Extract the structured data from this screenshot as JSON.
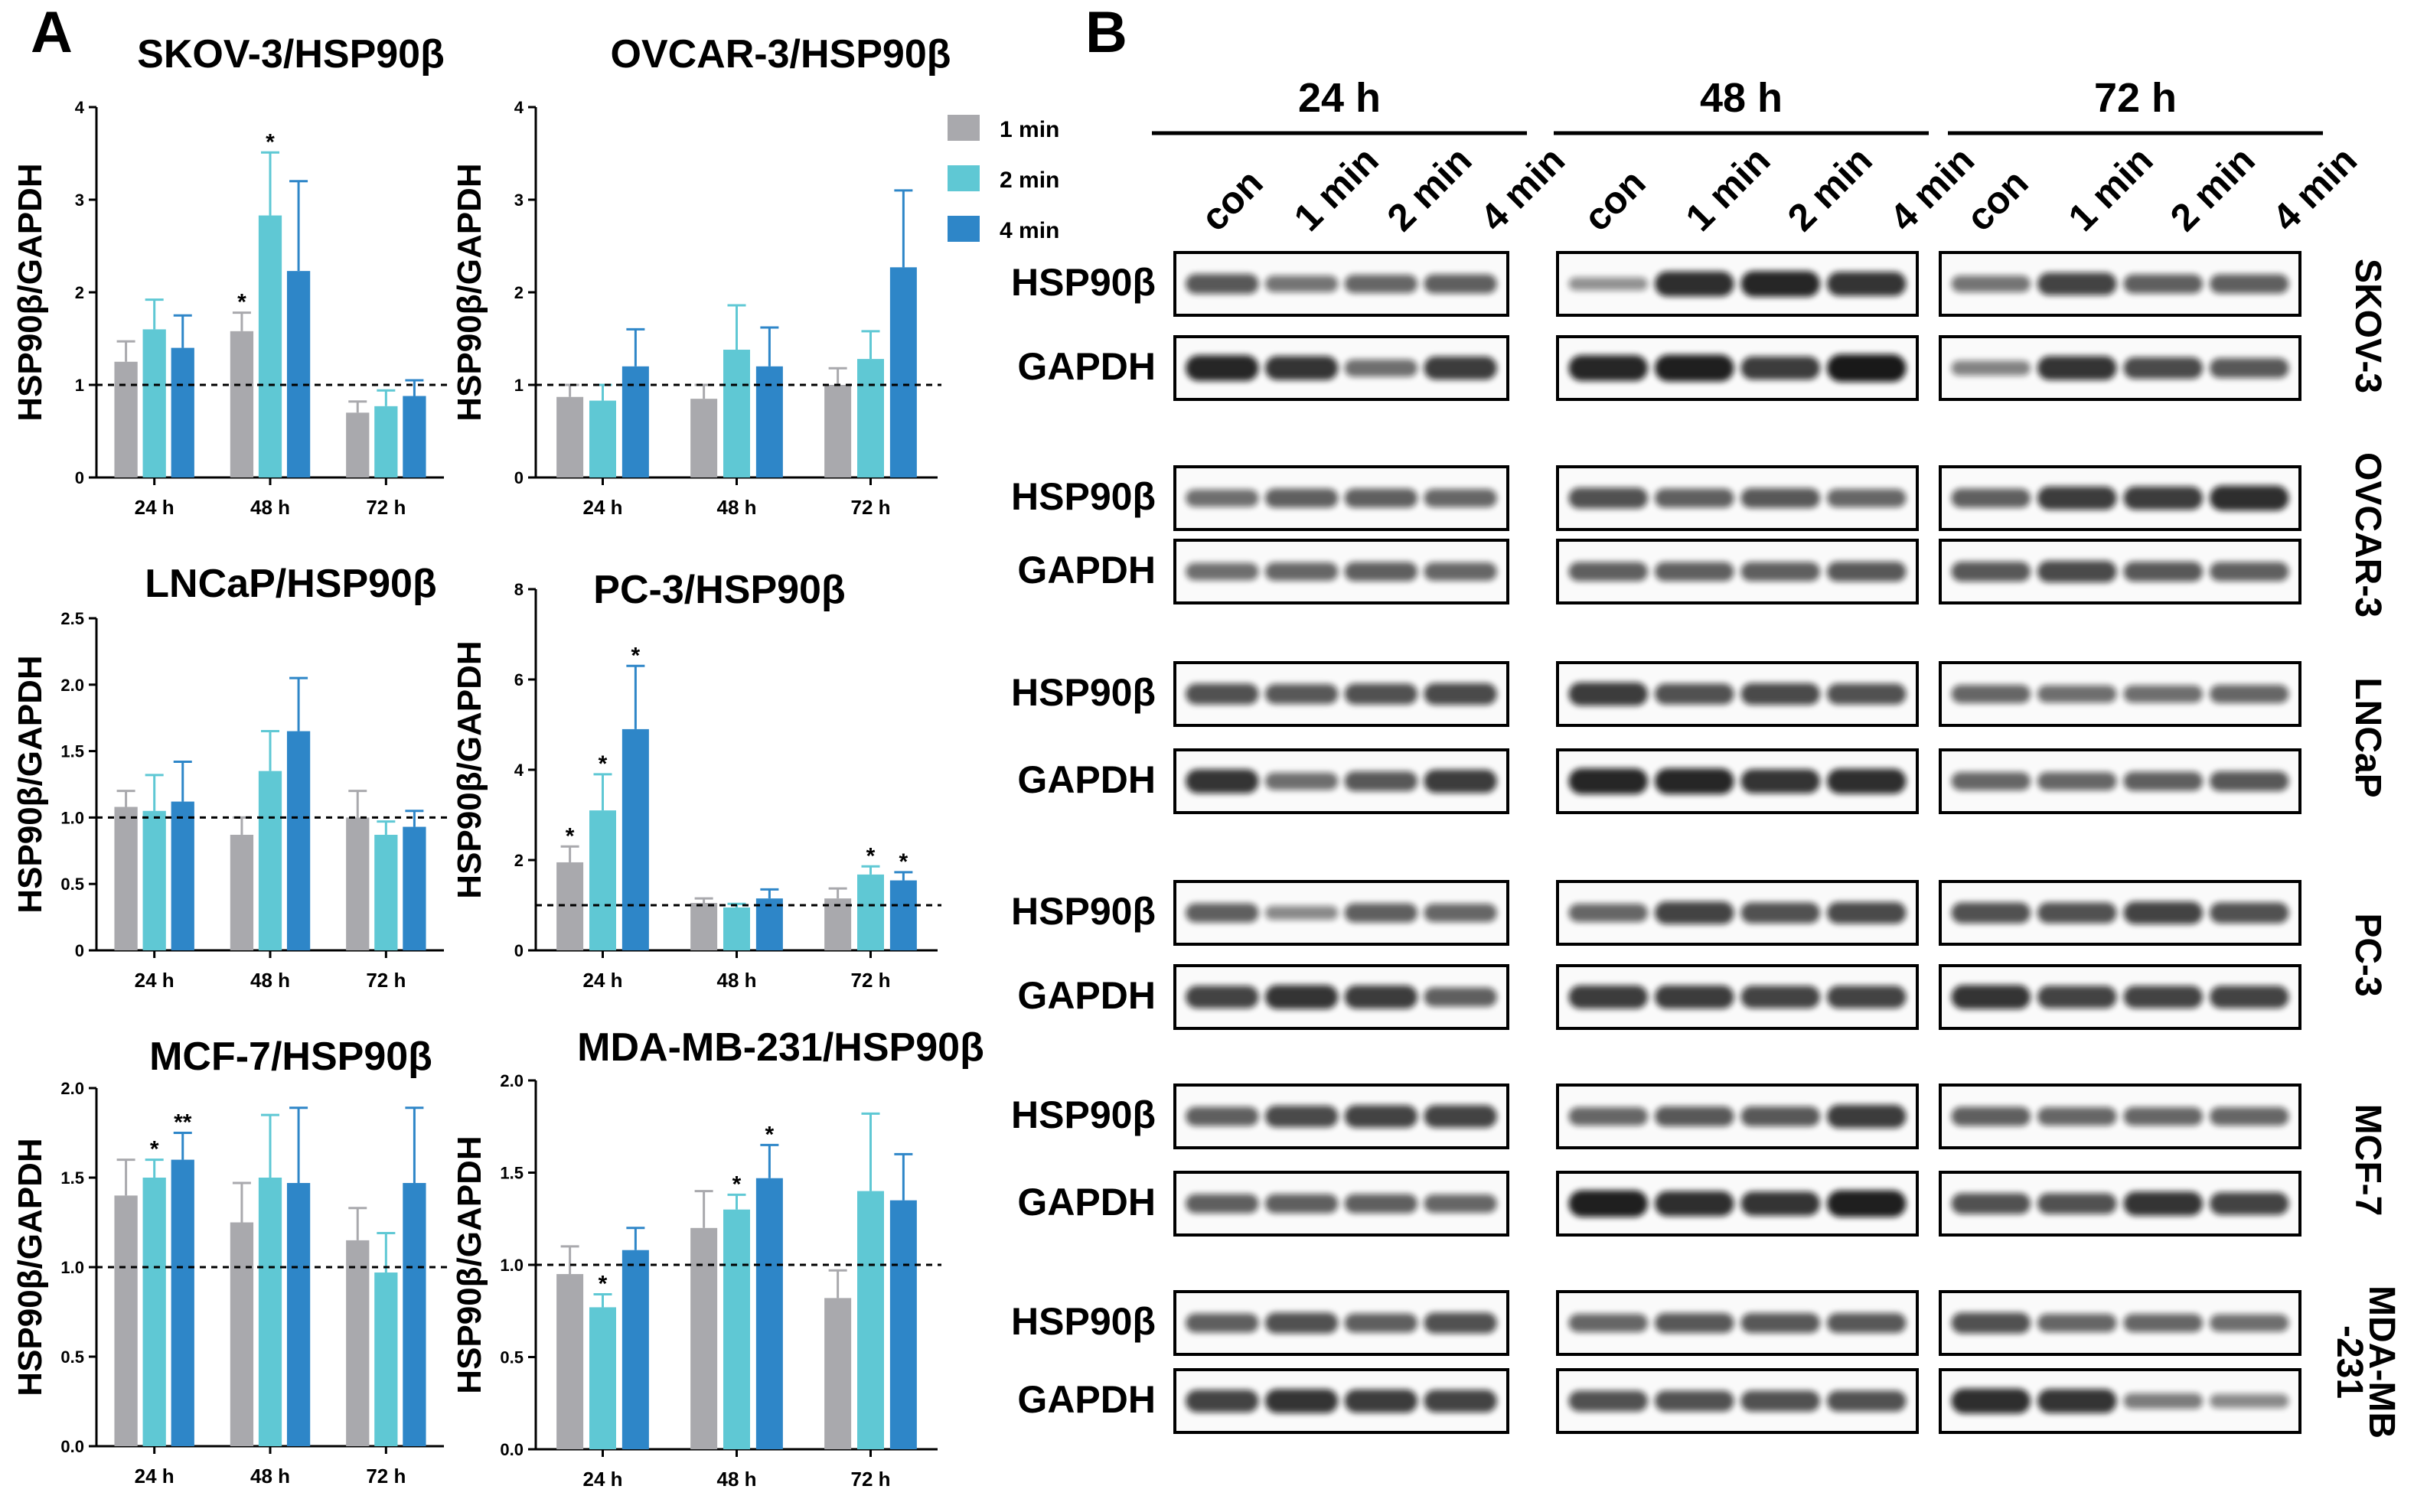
{
  "panels": {
    "a": "A",
    "b": "B"
  },
  "legend": {
    "entries": [
      {
        "label": "1 min",
        "color": "#a9a9ad"
      },
      {
        "label": "2 min",
        "color": "#5fc8d4"
      },
      {
        "label": "4 min",
        "color": "#2e86c8"
      }
    ]
  },
  "chart_data": [
    {
      "type": "bar",
      "title": "SKOV-3/HSP90β",
      "ylabel": "HSP90β/GAPDH",
      "categories": [
        "24 h",
        "48 h",
        "72 h"
      ],
      "ylim": [
        0,
        4
      ],
      "yticks": [
        "0",
        "1",
        "2",
        "3",
        "4"
      ],
      "baseline": 1.0,
      "series": [
        {
          "name": "1 min",
          "values": [
            1.25,
            1.58,
            0.7
          ],
          "errors": [
            0.22,
            0.2,
            0.12
          ],
          "stars": [
            "",
            "*",
            ""
          ]
        },
        {
          "name": "2 min",
          "values": [
            1.6,
            2.83,
            0.77
          ],
          "errors": [
            0.32,
            0.68,
            0.17
          ],
          "stars": [
            "",
            "*",
            ""
          ]
        },
        {
          "name": "4 min",
          "values": [
            1.4,
            2.23,
            0.88
          ],
          "errors": [
            0.35,
            0.97,
            0.17
          ],
          "stars": [
            "",
            "",
            ""
          ]
        }
      ]
    },
    {
      "type": "bar",
      "title": "OVCAR-3/HSP90β",
      "ylabel": "HSP90β/GAPDH",
      "categories": [
        "24 h",
        "48 h",
        "72 h"
      ],
      "ylim": [
        0,
        4
      ],
      "yticks": [
        "0",
        "1",
        "2",
        "3",
        "4"
      ],
      "baseline": 1.0,
      "series": [
        {
          "name": "1 min",
          "values": [
            0.87,
            0.85,
            1.0
          ],
          "errors": [
            0.13,
            0.15,
            0.18
          ],
          "stars": [
            "",
            "",
            ""
          ]
        },
        {
          "name": "2 min",
          "values": [
            0.83,
            1.38,
            1.28
          ],
          "errors": [
            0.17,
            0.48,
            0.3
          ],
          "stars": [
            "",
            "",
            ""
          ]
        },
        {
          "name": "4 min",
          "values": [
            1.2,
            1.2,
            2.27
          ],
          "errors": [
            0.4,
            0.42,
            0.83
          ],
          "stars": [
            "",
            "",
            ""
          ]
        }
      ]
    },
    {
      "type": "bar",
      "title": "LNCaP/HSP90β",
      "ylabel": "HSP90β/GAPDH",
      "categories": [
        "24 h",
        "48 h",
        "72 h"
      ],
      "ylim": [
        0,
        2.5
      ],
      "yticks": [
        "0",
        "0.5",
        "1.0",
        "1.5",
        "2.0",
        "2.5"
      ],
      "baseline": 1.0,
      "series": [
        {
          "name": "1 min",
          "values": [
            1.08,
            0.87,
            1.0
          ],
          "errors": [
            0.12,
            0.13,
            0.2
          ],
          "stars": [
            "",
            "",
            ""
          ]
        },
        {
          "name": "2 min",
          "values": [
            1.05,
            1.35,
            0.87
          ],
          "errors": [
            0.27,
            0.3,
            0.1
          ],
          "stars": [
            "",
            "",
            ""
          ]
        },
        {
          "name": "4 min",
          "values": [
            1.12,
            1.65,
            0.93
          ],
          "errors": [
            0.3,
            0.4,
            0.12
          ],
          "stars": [
            "",
            "",
            ""
          ]
        }
      ]
    },
    {
      "type": "bar",
      "title": "PC-3/HSP90β",
      "ylabel": "HSP90β/GAPDH",
      "categories": [
        "24 h",
        "48 h",
        "72 h"
      ],
      "ylim": [
        0,
        8
      ],
      "yticks": [
        "0",
        "2",
        "4",
        "6",
        "8"
      ],
      "baseline": 1.0,
      "series": [
        {
          "name": "1 min",
          "values": [
            1.95,
            1.05,
            1.15
          ],
          "errors": [
            0.35,
            0.1,
            0.22
          ],
          "stars": [
            "*",
            "",
            ""
          ]
        },
        {
          "name": "2 min",
          "values": [
            3.1,
            0.95,
            1.68
          ],
          "errors": [
            0.8,
            0.08,
            0.18
          ],
          "stars": [
            "*",
            "",
            "*"
          ]
        },
        {
          "name": "4 min",
          "values": [
            4.9,
            1.15,
            1.55
          ],
          "errors": [
            1.4,
            0.2,
            0.18
          ],
          "stars": [
            "*",
            "",
            "*"
          ]
        }
      ]
    },
    {
      "type": "bar",
      "title": "MCF-7/HSP90β",
      "ylabel": "HSP90β/GAPDH",
      "categories": [
        "24 h",
        "48 h",
        "72 h"
      ],
      "ylim": [
        0,
        2.0
      ],
      "yticks": [
        "0.0",
        "0.5",
        "1.0",
        "1.5",
        "2.0"
      ],
      "baseline": 1.0,
      "series": [
        {
          "name": "1 min",
          "values": [
            1.4,
            1.25,
            1.15
          ],
          "errors": [
            0.2,
            0.22,
            0.18
          ],
          "stars": [
            "",
            "",
            ""
          ]
        },
        {
          "name": "2 min",
          "values": [
            1.5,
            1.5,
            0.97
          ],
          "errors": [
            0.1,
            0.35,
            0.22
          ],
          "stars": [
            "*",
            "",
            ""
          ]
        },
        {
          "name": "4 min",
          "values": [
            1.6,
            1.47,
            1.47
          ],
          "errors": [
            0.15,
            0.42,
            0.42
          ],
          "stars": [
            "**",
            "",
            ""
          ]
        }
      ]
    },
    {
      "type": "bar",
      "title": "MDA-MB-231/HSP90β",
      "ylabel": "HSP90β/GAPDH",
      "categories": [
        "24 h",
        "48 h",
        "72 h"
      ],
      "ylim": [
        0,
        2.0
      ],
      "yticks": [
        "0.0",
        "0.5",
        "1.0",
        "1.5",
        "2.0"
      ],
      "baseline": 1.0,
      "series": [
        {
          "name": "1 min",
          "values": [
            0.95,
            1.2,
            0.82
          ],
          "errors": [
            0.15,
            0.2,
            0.15
          ],
          "stars": [
            "",
            "",
            ""
          ]
        },
        {
          "name": "2 min",
          "values": [
            0.77,
            1.3,
            1.4
          ],
          "errors": [
            0.07,
            0.08,
            0.42
          ],
          "stars": [
            "*",
            "*",
            ""
          ]
        },
        {
          "name": "4 min",
          "values": [
            1.08,
            1.47,
            1.35
          ],
          "errors": [
            0.12,
            0.18,
            0.25
          ],
          "stars": [
            "",
            "*",
            ""
          ]
        }
      ]
    }
  ],
  "blot": {
    "timepoints": [
      "24 h",
      "48 h",
      "72 h"
    ],
    "lanes": [
      "con",
      "1 min",
      "2 min",
      "4 min"
    ],
    "cell_lines": [
      {
        "name": "SKOV-3",
        "proteins": [
          "HSP90β",
          "GAPDH"
        ],
        "intensity": [
          [
            [
              0.55,
              0.35,
              0.45,
              0.5
            ],
            [
              0.15,
              0.85,
              0.9,
              0.8
            ],
            [
              0.35,
              0.7,
              0.5,
              0.5
            ]
          ],
          [
            [
              0.9,
              0.8,
              0.4,
              0.75
            ],
            [
              0.9,
              0.95,
              0.75,
              1.0
            ],
            [
              0.25,
              0.8,
              0.65,
              0.55
            ]
          ]
        ]
      },
      {
        "name": "OVCAR-3",
        "proteins": [
          "HSP90β",
          "GAPDH"
        ],
        "intensity": [
          [
            [
              0.4,
              0.5,
              0.5,
              0.45
            ],
            [
              0.6,
              0.5,
              0.55,
              0.45
            ],
            [
              0.5,
              0.75,
              0.75,
              0.85
            ]
          ],
          [
            [
              0.4,
              0.45,
              0.5,
              0.45
            ],
            [
              0.5,
              0.5,
              0.5,
              0.55
            ],
            [
              0.55,
              0.65,
              0.55,
              0.5
            ]
          ]
        ]
      },
      {
        "name": "LNCaP",
        "proteins": [
          "HSP90β",
          "GAPDH"
        ],
        "intensity": [
          [
            [
              0.6,
              0.55,
              0.6,
              0.65
            ],
            [
              0.75,
              0.6,
              0.65,
              0.6
            ],
            [
              0.45,
              0.4,
              0.4,
              0.45
            ]
          ],
          [
            [
              0.8,
              0.4,
              0.55,
              0.75
            ],
            [
              0.9,
              0.9,
              0.8,
              0.85
            ],
            [
              0.45,
              0.45,
              0.5,
              0.55
            ]
          ]
        ]
      },
      {
        "name": "PC-3",
        "proteins": [
          "HSP90β",
          "GAPDH"
        ],
        "intensity": [
          [
            [
              0.5,
              0.2,
              0.5,
              0.45
            ],
            [
              0.45,
              0.7,
              0.6,
              0.65
            ],
            [
              0.6,
              0.6,
              0.7,
              0.6
            ]
          ],
          [
            [
              0.7,
              0.8,
              0.75,
              0.5
            ],
            [
              0.75,
              0.75,
              0.7,
              0.7
            ],
            [
              0.8,
              0.7,
              0.7,
              0.7
            ]
          ]
        ]
      },
      {
        "name": "MCF-7",
        "proteins": [
          "HSP90β",
          "GAPDH"
        ],
        "intensity": [
          [
            [
              0.5,
              0.65,
              0.7,
              0.7
            ],
            [
              0.45,
              0.55,
              0.55,
              0.75
            ],
            [
              0.5,
              0.45,
              0.45,
              0.45
            ]
          ],
          [
            [
              0.5,
              0.5,
              0.5,
              0.45
            ],
            [
              0.95,
              0.85,
              0.8,
              0.95
            ],
            [
              0.6,
              0.6,
              0.8,
              0.7
            ]
          ]
        ]
      },
      {
        "name": "MDA-MB\n-231",
        "proteins": [
          "HSP90β",
          "GAPDH"
        ],
        "intensity": [
          [
            [
              0.5,
              0.6,
              0.5,
              0.6
            ],
            [
              0.45,
              0.55,
              0.55,
              0.55
            ],
            [
              0.6,
              0.45,
              0.45,
              0.4
            ]
          ],
          [
            [
              0.7,
              0.8,
              0.75,
              0.7
            ],
            [
              0.6,
              0.6,
              0.6,
              0.6
            ],
            [
              0.85,
              0.8,
              0.3,
              0.2
            ]
          ]
        ]
      }
    ]
  }
}
